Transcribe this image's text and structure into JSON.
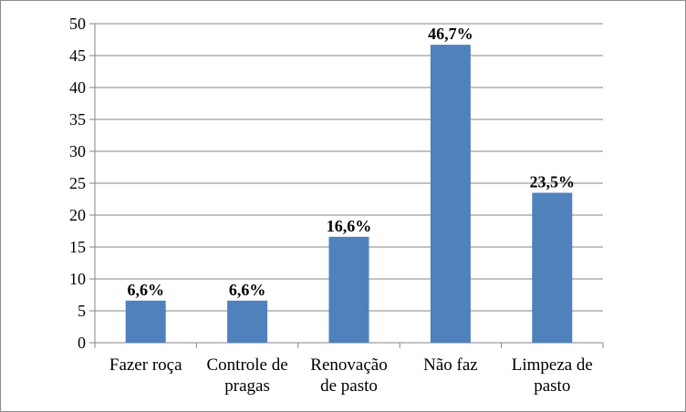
{
  "chart_data": {
    "type": "bar",
    "categories": [
      [
        "Fazer roça"
      ],
      [
        "Controle de",
        "pragas"
      ],
      [
        "Renovação",
        "de pasto"
      ],
      [
        "Não faz"
      ],
      [
        "Limpeza de",
        "pasto"
      ]
    ],
    "values": [
      6.6,
      6.6,
      16.6,
      46.7,
      23.5
    ],
    "data_labels": [
      "6,6%",
      "6,6%",
      "16,6%",
      "46,7%",
      "23,5%"
    ],
    "y_ticks": [
      "0",
      "5",
      "10",
      "15",
      "20",
      "25",
      "30",
      "35",
      "40",
      "45",
      "50"
    ],
    "ylim": [
      0,
      50
    ],
    "grid": true,
    "legend": "none",
    "bar_color": "#4f81bd"
  }
}
